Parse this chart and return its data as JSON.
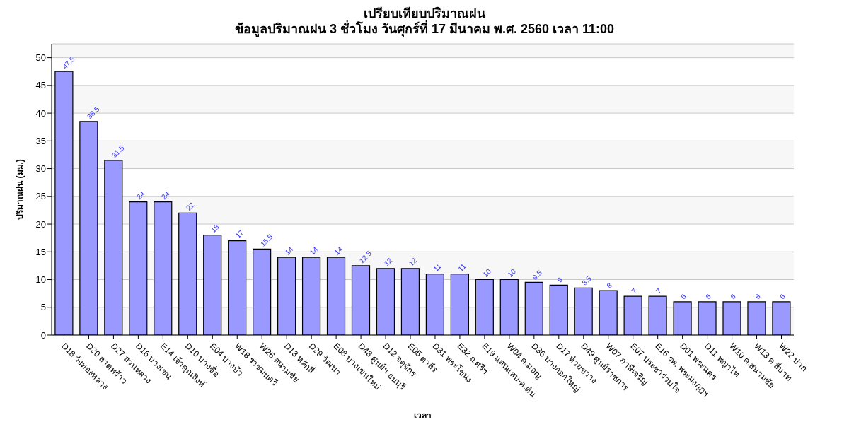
{
  "chart_data": {
    "type": "bar",
    "title": "เปรียบเทียบปริมาณฝน",
    "subtitle": "ข้อมูลปริมาณฝน 3 ชั่วโมง วันศุกร์ที่ 17 มีนาคม พ.ศ. 2560 เวลา 11:00",
    "xlabel": "เวลา",
    "ylabel": "ปริมาณฝน (มม.)",
    "categories": [
      "D18 วังทองหลาง",
      "D20 ลาดพร้าว",
      "D27 สวนหลวง",
      "D16 บางเขน",
      "E14 เจ้าคุณสิงห์",
      "D10 บางซื่อ",
      "E04 บางบัว",
      "W18 ราชมนตรี",
      "W26 สนามชัย",
      "D13 หลักสี่",
      "D29 วัฒนา",
      "E08 บางเขนใหม่",
      "D48 ศูนย์ฯ ธนบุรี",
      "D12 จตุจักร",
      "E05 ตาลีร",
      "D31 พระโขนง",
      "E32 ถ.ศรีฯ",
      "E19 แสนแสบ-ค.ตัน",
      "W04 ค.มอญ",
      "D36 บางกอกใหญ่",
      "D17 ห้วยขวาง",
      "D49 ศูนย์ราชการ",
      "W07 ภาษีเจริญ",
      "E07 ประชาร่วมใจ",
      "E16 รพ. พระมงกุฎฯ",
      "D01 พระนคร",
      "D11 พญาไท",
      "W10 ค.สนามชัย",
      "W13 ค.สี่บาท",
      "W22 ปาก"
    ],
    "values": [
      47.5,
      38.5,
      31.5,
      24,
      24,
      22,
      18,
      17,
      15.5,
      14,
      14,
      14,
      12.5,
      12,
      12,
      11,
      11,
      10,
      10,
      9.5,
      9,
      8.5,
      8,
      7,
      7,
      6,
      6,
      6,
      6,
      6
    ],
    "color": "#9999ff",
    "data_labels": true,
    "ylim": [
      0,
      52.5
    ],
    "yticks": [
      0,
      5,
      10,
      15,
      20,
      25,
      30,
      35,
      40,
      45,
      50
    ],
    "grid": "y"
  }
}
